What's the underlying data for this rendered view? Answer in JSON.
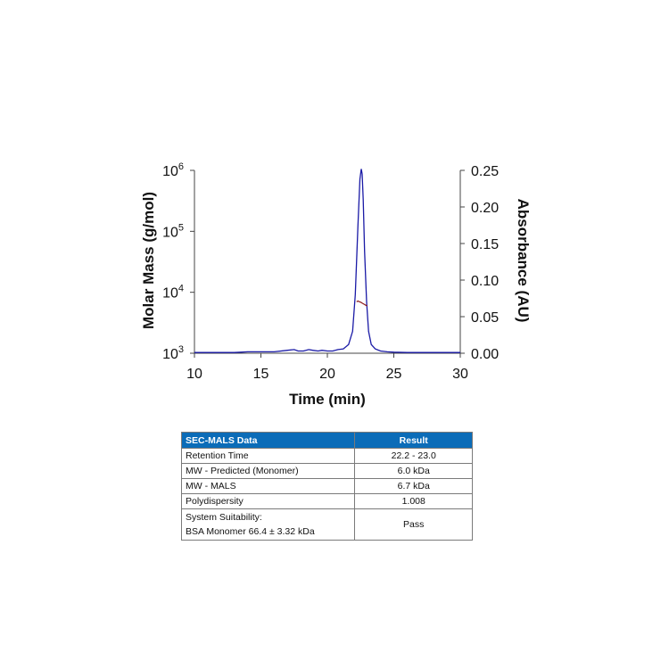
{
  "chart_data": {
    "type": "line",
    "xlabel": "Time (min)",
    "ylabel_left": "Molar Mass (g/mol)",
    "ylabel_right": "Absorbance (AU)",
    "xlim": [
      10,
      30
    ],
    "x_ticks": [
      "10",
      "15",
      "20",
      "25",
      "30"
    ],
    "ylim_left": [
      1000,
      1000000
    ],
    "left_scale": "log",
    "y_ticks_left": [
      {
        "base": "10",
        "exp": "3"
      },
      {
        "base": "10",
        "exp": "4"
      },
      {
        "base": "10",
        "exp": "5"
      },
      {
        "base": "10",
        "exp": "6"
      }
    ],
    "ylim_right": [
      0,
      0.25
    ],
    "y_ticks_right": [
      "0.00",
      "0.05",
      "0.10",
      "0.15",
      "0.20",
      "0.25"
    ],
    "grid": false,
    "series": [
      {
        "color": "#1a1aa6",
        "axis": "right",
        "x": [
          10,
          11,
          12,
          13,
          13.5,
          14,
          15,
          16,
          17,
          17.5,
          17.8,
          18.2,
          18.6,
          18.9,
          19.3,
          19.6,
          20,
          20.4,
          20.8,
          21.2,
          21.6,
          21.9,
          22.1,
          22.3,
          22.45,
          22.55,
          22.62,
          22.7,
          22.8,
          22.95,
          23.1,
          23.3,
          23.6,
          24,
          24.5,
          25,
          26,
          27,
          28,
          29,
          30
        ],
        "values": [
          0.001,
          0.001,
          0.001,
          0.001,
          0.0015,
          0.002,
          0.002,
          0.002,
          0.004,
          0.005,
          0.003,
          0.003,
          0.005,
          0.004,
          0.003,
          0.004,
          0.003,
          0.003,
          0.005,
          0.006,
          0.012,
          0.03,
          0.08,
          0.175,
          0.238,
          0.252,
          0.245,
          0.21,
          0.14,
          0.07,
          0.03,
          0.012,
          0.006,
          0.003,
          0.002,
          0.0015,
          0.001,
          0.001,
          0.001,
          0.001,
          0.001
        ]
      },
      {
        "color": "#8b1a1a",
        "axis": "left",
        "x": [
          22.2,
          22.3,
          22.4,
          22.5,
          22.6,
          22.7,
          22.8,
          22.9,
          23.0
        ],
        "values": [
          7000,
          7200,
          7000,
          6900,
          6700,
          6500,
          6300,
          6100,
          6000
        ]
      }
    ]
  },
  "table": {
    "header": {
      "col1": "SEC-MALS Data",
      "col2": "Result"
    },
    "rows": [
      {
        "label": "Retention Time",
        "value": "22.2 - 23.0"
      },
      {
        "label": "MW - Predicted (Monomer)",
        "value": "6.0 kDa"
      },
      {
        "label": "MW - MALS",
        "value": "6.7 kDa"
      },
      {
        "label": "Polydispersity",
        "value": "1.008"
      }
    ],
    "suitability": {
      "line1": "System Suitability:",
      "line2": "BSA Monomer 66.4 ± 3.32 kDa",
      "value": "Pass"
    }
  }
}
